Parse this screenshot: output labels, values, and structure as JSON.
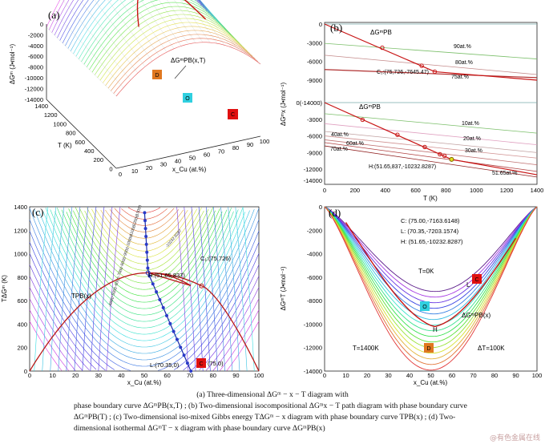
{
  "panel_a": {
    "label": "(a)",
    "ylabel": "ΔGᵐ (J•mol⁻¹)",
    "curve_label": "ΔGᵐPB(x,T)",
    "xlabel": "x_Cu  (at.%)",
    "tlabel": "T  (K)",
    "z_ticks": [
      "0",
      "-2000",
      "-4000",
      "-6000",
      "-8000",
      "-10000",
      "-12000",
      "-14000"
    ],
    "t_ticks": [
      "1400",
      "1200",
      "1000",
      "800",
      "600",
      "400",
      "200",
      "0"
    ],
    "x_ticks": [
      "0",
      "10",
      "20",
      "30",
      "40",
      "50",
      "60",
      "70",
      "80",
      "90",
      "100"
    ],
    "markers": [
      {
        "letter": "D",
        "color": "#e07820"
      },
      {
        "letter": "O",
        "color": "#30d0e0"
      },
      {
        "letter": "C",
        "color": "#e01010"
      }
    ]
  },
  "panel_b": {
    "label": "(b)",
    "ylabel": "ΔGᵐx (J•mol⁻¹)",
    "top_y_ticks": [
      "0",
      "-3000",
      "-6000",
      "-9000"
    ],
    "bottom_y_ticks": [
      "0(-14000)",
      "-3000",
      "-6000",
      "-9000",
      "-12000",
      "-14000"
    ],
    "x_ticks": [
      "0",
      "200",
      "400",
      "600",
      "800",
      "1000",
      "1200",
      "1400"
    ],
    "xlabel": "T (K)",
    "top_lines": [
      "90at.%",
      "80at.%",
      "75at.%"
    ],
    "top_curve_label": "ΔGᵐPB",
    "point_c1": "C₁:(75,726,-7645.47)",
    "bottom_curve_label": "ΔGᵐPB",
    "bottom_lines": [
      "10at.%",
      "20at.%",
      "30at.%",
      "40at.%",
      "60at.%",
      "70at.%",
      "51.65at.%"
    ],
    "point_h": "H:(51.65,837,-10232.8287)"
  },
  "panel_c": {
    "label": "(c)",
    "ylabel": "TΔGᵐ  (K)",
    "y_ticks": [
      "0",
      "200",
      "400",
      "600",
      "800",
      "1000",
      "1200",
      "1400"
    ],
    "x_ticks": [
      "0",
      "10",
      "20",
      "30",
      "40",
      "50",
      "60",
      "70",
      "80",
      "90",
      "100"
    ],
    "xlabel": "x_Cu  (at.%)",
    "curve_label": "TPB(x)",
    "point_h": "H:(51.65,837)",
    "point_c1": "C₁:(75,726)",
    "point_l": "L:(70.35,0)",
    "point_c": "(75,0)",
    "marker_letter": "C",
    "contour_labels": [
      "-13000",
      "-12000",
      "-11000",
      "-10000",
      "-9000",
      "-8000",
      "-7000",
      "-6000",
      "-5000",
      "-4000",
      "-10232.8287"
    ]
  },
  "panel_d": {
    "label": "(d)",
    "ylabel": "ΔGᵐT (J•mol⁻¹)",
    "y_ticks": [
      "0",
      "-2000",
      "-4000",
      "-6000",
      "-8000",
      "-10000",
      "-12000",
      "-14000"
    ],
    "x_ticks": [
      "0",
      "10",
      "20",
      "30",
      "40",
      "50",
      "60",
      "70",
      "80",
      "90",
      "100"
    ],
    "xlabel": "x_Cu  (at.%)",
    "legend": [
      "C: (75.00,-7163.6148)",
      "L: (70.35,-7203.1574)",
      "H: (51.65,-10232.8287)"
    ],
    "t0": "T=0K",
    "t1400": "T=1400K",
    "dt": "ΔT=100K",
    "curve_label": "ΔGᵐPB(x)",
    "l_label": "L",
    "h_label": "H",
    "markers": [
      {
        "letter": "C",
        "color": "#e01010"
      },
      {
        "letter": "O",
        "color": "#30d0e0"
      },
      {
        "letter": "D",
        "color": "#e07820"
      }
    ]
  },
  "caption": {
    "line1": "(a) Three-dimensional  ΔGᵐ − x − T  diagram with",
    "line2": "phase boundary curve  ΔGᵐPB(x,T) ; (b) Two-dimensional isocompositional  ΔGᵐx − T  path diagram with phase boundary curve",
    "line3": "ΔGᵐPB(T) ; (c) Two-dimensional iso-mixed Gibbs energy  TΔGᵐ − x  diagram with phase boundary curve  TPB(x) ; (d) Two-",
    "line4": "dimensional isothermal  ΔGᵐT − x  diagram with phase boundary curve  ΔGᵐPB(x)"
  },
  "watermark": "@有色金属在线"
}
